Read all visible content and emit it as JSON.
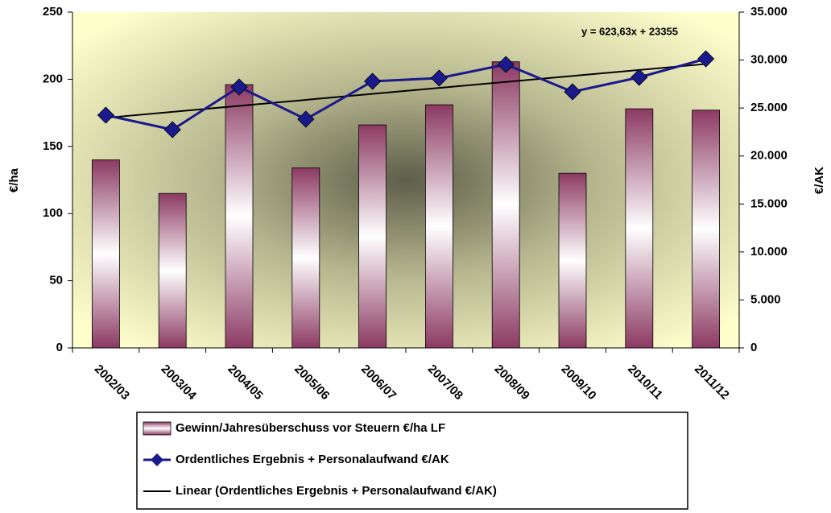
{
  "chart_data": {
    "type": "bar-line",
    "categories": [
      "2002/03",
      "2003/04",
      "2004/05",
      "2005/06",
      "2006/07",
      "2007/08",
      "2008/09",
      "2009/10",
      "2010/11",
      "2011/12"
    ],
    "ylabel": "€/ha",
    "y2label": "€/AK",
    "ylim": [
      0,
      250
    ],
    "yticks": [
      0,
      50,
      100,
      150,
      200,
      250
    ],
    "y2lim": [
      0,
      35000
    ],
    "y2ticks": [
      0,
      {
        "value": 5000,
        "label": "5.000"
      },
      {
        "value": 10000,
        "label": "10.000"
      },
      {
        "value": 15000,
        "label": "15.000"
      },
      {
        "value": 20000,
        "label": "20.000"
      },
      {
        "value": 25000,
        "label": "25.000"
      },
      {
        "value": 30000,
        "label": "30.000"
      },
      {
        "value": 35000,
        "label": "35.000"
      }
    ],
    "series": [
      {
        "name": "Gewinn/Jahresüberschuss vor Steuern €/ha LF",
        "type": "bar",
        "color": "#8c3a63",
        "values": [
          140,
          115,
          196,
          134,
          166,
          181,
          213,
          130,
          178,
          177
        ]
      },
      {
        "name": "Ordentliches Ergebnis + Personalaufwand €/AK",
        "type": "line",
        "axis": "y2",
        "color": "#1a1a8c",
        "values": [
          24257,
          22746,
          27194,
          23837,
          27782,
          28118,
          29544,
          26691,
          28201,
          30132
        ]
      }
    ],
    "trendline": {
      "name": "Linear (Ordentliches Ergebnis + Personalaufwand €/AK)",
      "color": "#000000",
      "label": "y = 623,63x + 23355",
      "slope": 623.63,
      "intercept": 23355
    },
    "legend": "bottom"
  }
}
